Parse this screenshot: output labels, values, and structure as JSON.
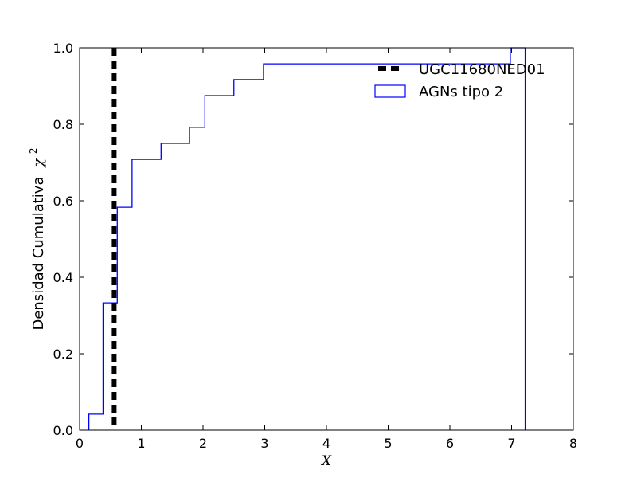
{
  "chart_data": {
    "type": "line",
    "title": "",
    "xlabel": "X",
    "ylabel": "Densidad Cumulativa",
    "ylabel_symbol": "χ",
    "ylabel_superscript": "2",
    "xlim": [
      0,
      8
    ],
    "ylim": [
      0,
      1.0
    ],
    "xticks": [
      0,
      1,
      2,
      3,
      4,
      5,
      6,
      7,
      8
    ],
    "yticks": [
      0.0,
      0.2,
      0.4,
      0.6,
      0.8,
      1.0
    ],
    "xtick_labels": [
      "0",
      "1",
      "2",
      "3",
      "4",
      "5",
      "6",
      "7",
      "8"
    ],
    "ytick_labels": [
      "0.0",
      "0.2",
      "0.4",
      "0.6",
      "0.8",
      "1.0"
    ],
    "grid": false,
    "legend_position": "top-right",
    "vline": {
      "name": "UGC11680NED01",
      "x": 0.56,
      "color": "#000000",
      "style": "dashed"
    },
    "series": [
      {
        "name": "AGNs tipo 2",
        "type": "step-cumulative",
        "color": "#0000ff",
        "x": [
          0.15,
          0.38,
          0.61,
          0.85,
          1.32,
          1.78,
          2.03,
          2.5,
          2.98,
          6.98,
          7.22
        ],
        "y": [
          0.042,
          0.333,
          0.583,
          0.708,
          0.75,
          0.792,
          0.875,
          0.917,
          0.958,
          1.0,
          1.0
        ]
      }
    ]
  },
  "legend": {
    "items": [
      {
        "label": "UGC11680NED01",
        "kind": "dashed-line",
        "color": "#000000"
      },
      {
        "label": "AGNs tipo 2",
        "kind": "box",
        "color": "#0000ff"
      }
    ]
  }
}
